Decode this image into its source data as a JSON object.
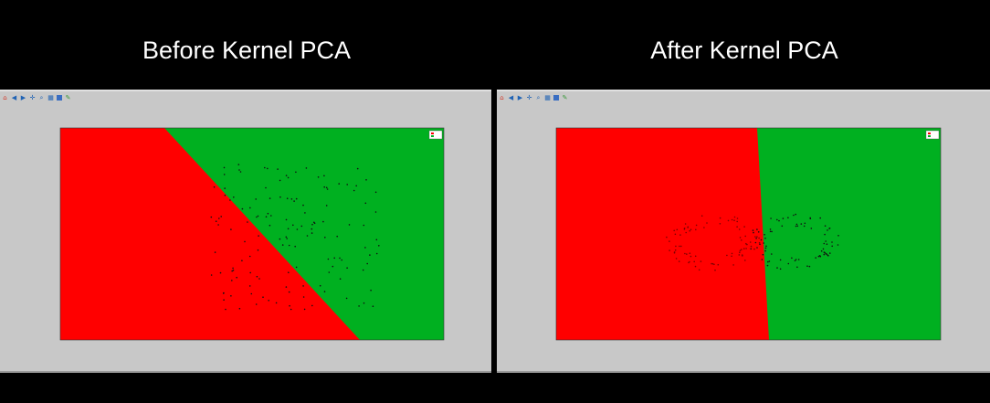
{
  "headings": {
    "left": "Before Kernel PCA",
    "right": "After Kernel PCA"
  },
  "colors": {
    "class0": "#ff0000",
    "class1": "#00b020",
    "background": "#000000",
    "panel": "#c8c8c8",
    "points": "#111111"
  },
  "toolbar": {
    "icons": [
      "home-icon",
      "back-arrow-icon",
      "forward-arrow-icon",
      "pan-icon",
      "zoom-icon",
      "subplots-icon",
      "save-icon",
      "edit-icon"
    ]
  },
  "chart_data": [
    {
      "type": "scatter",
      "title": "",
      "xlabel": "",
      "ylabel": "",
      "legend_position": "top-right",
      "decision_regions": {
        "class0": "red",
        "class1": "green",
        "boundary": "diagonal"
      },
      "grid": false
    },
    {
      "type": "scatter",
      "title": "",
      "xlabel": "",
      "ylabel": "",
      "legend_position": "top-right",
      "decision_regions": {
        "class0": "red",
        "class1": "green",
        "boundary": "near-vertical"
      },
      "grid": false
    }
  ]
}
